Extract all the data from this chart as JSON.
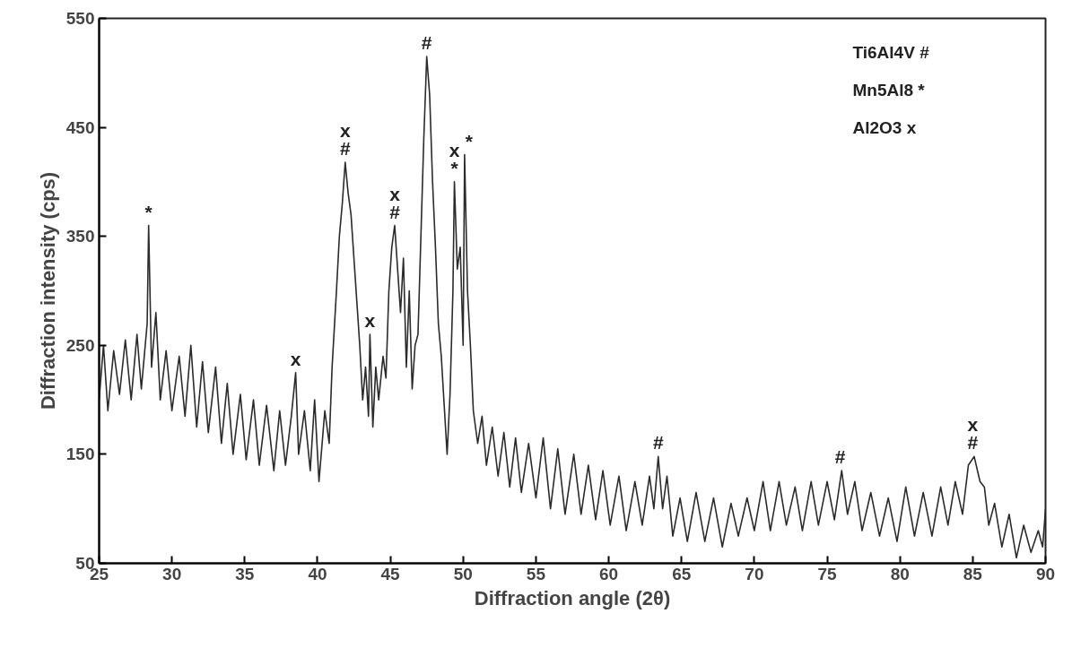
{
  "chart_data": {
    "type": "line",
    "xlabel": "Diffraction angle (2θ)",
    "ylabel": "Diffraction intensity (cps)",
    "xlim": [
      25,
      90
    ],
    "xticks": [
      25,
      30,
      35,
      40,
      45,
      50,
      55,
      60,
      65,
      70,
      75,
      80,
      85,
      90
    ],
    "ylim": [
      50,
      550
    ],
    "yticks": [
      50,
      150,
      250,
      350,
      450,
      550
    ],
    "grid": false,
    "marker": "none",
    "line_style": "solid",
    "series": [
      {
        "color": "#2b2b2b",
        "x": [
          25,
          25.3,
          25.6,
          26,
          26.4,
          26.8,
          27.2,
          27.6,
          27.9,
          28.3,
          28.4,
          28.6,
          28.9,
          29.2,
          29.6,
          30.0,
          30.5,
          30.9,
          31.3,
          31.7,
          32.1,
          32.5,
          33,
          33.4,
          33.8,
          34.2,
          34.7,
          35.1,
          35.6,
          36,
          36.5,
          37,
          37.4,
          37.8,
          38.2,
          38.5,
          38.7,
          39.1,
          39.5,
          39.8,
          40.1,
          40.5,
          40.8,
          41.0,
          41.3,
          41.5,
          41.7,
          41.9,
          42.1,
          42.3,
          42.5,
          42.7,
          42.9,
          43.1,
          43.3,
          43.5,
          43.6,
          43.8,
          44.0,
          44.2,
          44.5,
          44.7,
          44.9,
          45.1,
          45.3,
          45.5,
          45.7,
          45.9,
          46.1,
          46.3,
          46.5,
          46.7,
          46.9,
          47.1,
          47.3,
          47.5,
          47.7,
          47.9,
          48.1,
          48.3,
          48.5,
          48.7,
          48.9,
          49.1,
          49.3,
          49.4,
          49.6,
          49.8,
          50.0,
          50.1,
          50.3,
          50.5,
          50.7,
          51,
          51.3,
          51.6,
          52,
          52.4,
          52.8,
          53.2,
          53.6,
          54,
          54.5,
          55,
          55.5,
          56,
          56.5,
          57,
          57.6,
          58.1,
          58.6,
          59.1,
          59.6,
          60.1,
          60.7,
          61.2,
          61.8,
          62.3,
          62.8,
          63.1,
          63.4,
          63.7,
          64.0,
          64.4,
          64.9,
          65.4,
          66,
          66.6,
          67.2,
          67.8,
          68.4,
          68.9,
          69.5,
          70,
          70.6,
          71.1,
          71.7,
          72.2,
          72.8,
          73.3,
          73.9,
          74.4,
          75,
          75.5,
          76,
          76.4,
          76.9,
          77.4,
          78,
          78.6,
          79.2,
          79.8,
          80.4,
          81,
          81.6,
          82.2,
          82.8,
          83.3,
          83.8,
          84.3,
          84.7,
          85.1,
          85.5,
          85.8,
          86.1,
          86.5,
          87,
          87.5,
          88,
          88.5,
          89,
          89.5,
          89.8,
          90
        ],
        "values": [
          200,
          250,
          190,
          245,
          205,
          255,
          200,
          260,
          210,
          270,
          360,
          230,
          280,
          200,
          245,
          190,
          240,
          185,
          250,
          175,
          235,
          170,
          230,
          160,
          215,
          150,
          205,
          145,
          200,
          140,
          195,
          135,
          190,
          140,
          185,
          225,
          150,
          190,
          135,
          200,
          125,
          190,
          160,
          230,
          300,
          350,
          380,
          418,
          390,
          370,
          330,
          290,
          250,
          200,
          230,
          185,
          260,
          175,
          230,
          200,
          240,
          220,
          300,
          340,
          360,
          320,
          280,
          330,
          230,
          300,
          210,
          250,
          260,
          350,
          440,
          515,
          480,
          400,
          340,
          270,
          240,
          195,
          150,
          205,
          300,
          400,
          320,
          340,
          250,
          425,
          300,
          250,
          190,
          160,
          185,
          140,
          175,
          130,
          170,
          120,
          165,
          115,
          160,
          110,
          165,
          100,
          155,
          95,
          150,
          95,
          140,
          90,
          135,
          85,
          130,
          80,
          125,
          85,
          130,
          100,
          148,
          100,
          130,
          75,
          110,
          70,
          115,
          70,
          110,
          65,
          105,
          75,
          110,
          80,
          125,
          80,
          125,
          85,
          120,
          80,
          125,
          85,
          125,
          90,
          135,
          95,
          125,
          80,
          115,
          75,
          110,
          70,
          120,
          75,
          115,
          75,
          120,
          85,
          125,
          95,
          140,
          148,
          125,
          120,
          85,
          105,
          65,
          95,
          55,
          85,
          60,
          80,
          65,
          100
        ]
      }
    ],
    "annotations": [
      "Ti6Al4V  #",
      "Mn5Al8  *",
      "Al2O3    x",
      {
        "text": "*",
        "x": 28.4,
        "y": 360
      },
      {
        "text": "x",
        "x": 38.5,
        "y": 225
      },
      {
        "text": "#",
        "x": 41.9,
        "y": 418
      },
      {
        "text": "x",
        "x": 41.9,
        "y": 418
      },
      {
        "text": "x",
        "x": 43.6,
        "y": 260
      },
      {
        "text": "#",
        "x": 45.3,
        "y": 360
      },
      {
        "text": "x",
        "x": 45.3,
        "y": 360
      },
      {
        "text": "#",
        "x": 47.5,
        "y": 515
      },
      {
        "text": "*",
        "x": 49.4,
        "y": 400
      },
      {
        "text": "x",
        "x": 49.4,
        "y": 400
      },
      {
        "text": "*",
        "x": 50.4,
        "y": 425
      },
      {
        "text": "#",
        "x": 63.4,
        "y": 148
      },
      {
        "text": "#",
        "x": 75.9,
        "y": 135
      },
      {
        "text": "#",
        "x": 85.0,
        "y": 148
      },
      {
        "text": "x",
        "x": 85.0,
        "y": 148
      }
    ]
  }
}
